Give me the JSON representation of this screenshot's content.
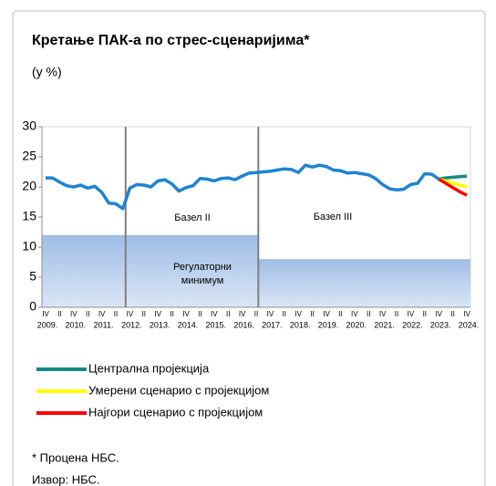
{
  "chart_data": {
    "type": "line",
    "title": "Кретање ПАК-а по стрес-сценаријима*",
    "subtitle": "(у %)",
    "categories": [
      "IV",
      null,
      "II",
      null,
      "IV",
      null,
      "II",
      null,
      "IV",
      null,
      "II",
      null,
      "IV",
      null,
      "II",
      null,
      "IV",
      null,
      "II",
      null,
      "IV",
      null,
      "II",
      null,
      "IV",
      null,
      "II",
      null,
      "IV",
      null,
      "II",
      null,
      "IV",
      null,
      "II",
      null,
      "IV",
      null,
      "II",
      null,
      "IV",
      null,
      "II",
      null,
      "IV",
      null,
      "II",
      null,
      "IV",
      null,
      "II",
      null,
      "IV",
      null,
      "II",
      null,
      "IV",
      null,
      "II",
      null,
      "IV"
    ],
    "year_labels": [
      "2009.",
      "2010.",
      "2011.",
      "2012.",
      "2013.",
      "2014.",
      "2015.",
      "2016.",
      "2017.",
      "2018.",
      "2019.",
      "2020.",
      "2021.",
      "2022.",
      "2023.",
      "2024."
    ],
    "actual": {
      "color": "#1f83d1",
      "values": [
        21.5,
        21.5,
        20.8,
        20.2,
        20.0,
        20.3,
        19.8,
        20.1,
        19.1,
        17.3,
        17.2,
        16.4,
        19.8,
        20.4,
        20.3,
        20.0,
        21.0,
        21.2,
        20.5,
        19.3,
        19.9,
        20.2,
        21.4,
        21.3,
        21.0,
        21.4,
        21.5,
        21.2,
        21.8,
        22.3,
        22.4,
        22.5,
        22.6,
        22.8,
        23.0,
        22.9,
        22.4,
        23.6,
        23.3,
        23.6,
        23.4,
        22.8,
        22.7,
        22.3,
        22.4,
        22.2,
        22.0,
        21.4,
        20.4,
        19.7,
        19.5,
        19.6,
        20.4,
        20.6,
        22.2,
        22.1,
        21.3,
        null,
        null,
        null,
        null
      ]
    },
    "series": [
      {
        "name": "Централна пројекција",
        "color": "#138a80",
        "values": [
          null,
          null,
          null,
          null,
          null,
          null,
          null,
          null,
          null,
          null,
          null,
          null,
          null,
          null,
          null,
          null,
          null,
          null,
          null,
          null,
          null,
          null,
          null,
          null,
          null,
          null,
          null,
          null,
          null,
          null,
          null,
          null,
          null,
          null,
          null,
          null,
          null,
          null,
          null,
          null,
          null,
          null,
          null,
          null,
          null,
          null,
          null,
          null,
          null,
          null,
          null,
          null,
          null,
          null,
          null,
          null,
          21.3,
          21.5,
          21.6,
          21.7,
          21.8
        ]
      },
      {
        "name": "Умерени сценарио с пројекцијом",
        "color": "#ffff00",
        "values": [
          null,
          null,
          null,
          null,
          null,
          null,
          null,
          null,
          null,
          null,
          null,
          null,
          null,
          null,
          null,
          null,
          null,
          null,
          null,
          null,
          null,
          null,
          null,
          null,
          null,
          null,
          null,
          null,
          null,
          null,
          null,
          null,
          null,
          null,
          null,
          null,
          null,
          null,
          null,
          null,
          null,
          null,
          null,
          null,
          null,
          null,
          null,
          null,
          null,
          null,
          null,
          null,
          null,
          null,
          null,
          null,
          21.3,
          21.0,
          20.6,
          20.3,
          20.0
        ]
      },
      {
        "name": "Најгори сценарио с пројекцијом",
        "color": "#ff0000",
        "values": [
          null,
          null,
          null,
          null,
          null,
          null,
          null,
          null,
          null,
          null,
          null,
          null,
          null,
          null,
          null,
          null,
          null,
          null,
          null,
          null,
          null,
          null,
          null,
          null,
          null,
          null,
          null,
          null,
          null,
          null,
          null,
          null,
          null,
          null,
          null,
          null,
          null,
          null,
          null,
          null,
          null,
          null,
          null,
          null,
          null,
          null,
          null,
          null,
          null,
          null,
          null,
          null,
          null,
          null,
          null,
          null,
          21.3,
          20.6,
          19.9,
          19.2,
          18.6
        ]
      }
    ],
    "minimum_levels": [
      12,
      8
    ],
    "minimum_label": [
      "Регулаторни",
      "минимум"
    ],
    "regimes": [
      "Базел II",
      "Базел III"
    ],
    "ylim": [
      0,
      30
    ],
    "yticks": [
      0,
      5,
      10,
      15,
      20,
      25,
      30
    ],
    "notes": [
      "* Процена НБС.",
      "Извор: НБС."
    ]
  }
}
